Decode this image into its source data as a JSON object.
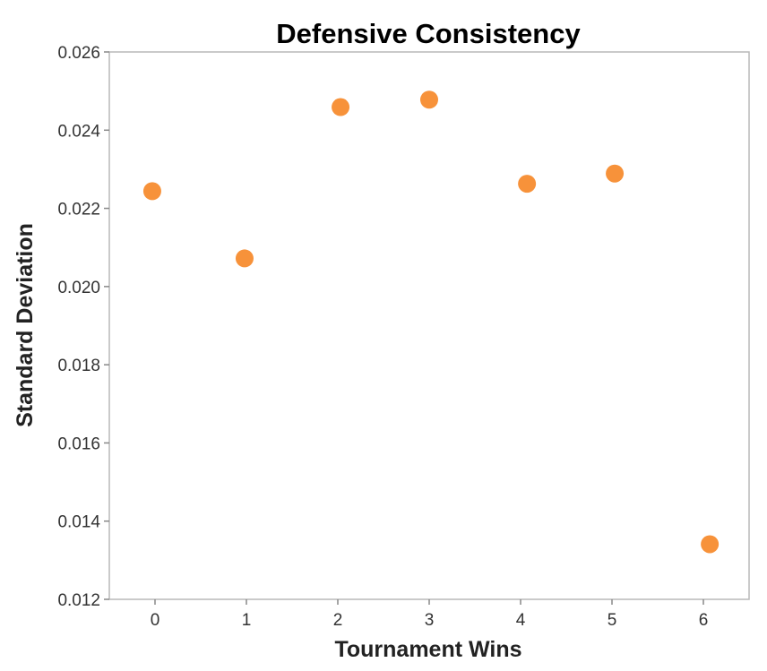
{
  "chart_data": {
    "type": "scatter",
    "title": "Defensive Consistency",
    "xlabel": "Tournament Wins",
    "ylabel": "Standard Deviation",
    "xlim": [
      -0.5,
      6.5
    ],
    "ylim": [
      0.012,
      0.026
    ],
    "x_ticks": [
      0,
      1,
      2,
      3,
      4,
      5,
      6
    ],
    "x_tick_labels": [
      "0",
      "1",
      "2",
      "3",
      "4",
      "5",
      "6"
    ],
    "y_ticks": [
      0.012,
      0.014,
      0.016,
      0.018,
      0.02,
      0.022,
      0.024,
      0.026
    ],
    "y_tick_labels": [
      "0.012",
      "0.014",
      "0.016",
      "0.018",
      "0.020",
      "0.022",
      "0.024",
      "0.026"
    ],
    "grid": false,
    "point_color": "#f7923a",
    "points": [
      {
        "x": -0.03,
        "y": 0.02244
      },
      {
        "x": 0.98,
        "y": 0.02072
      },
      {
        "x": 2.03,
        "y": 0.02459
      },
      {
        "x": 3.0,
        "y": 0.02478
      },
      {
        "x": 4.07,
        "y": 0.02263
      },
      {
        "x": 5.03,
        "y": 0.02289
      },
      {
        "x": 6.07,
        "y": 0.01341
      }
    ]
  }
}
